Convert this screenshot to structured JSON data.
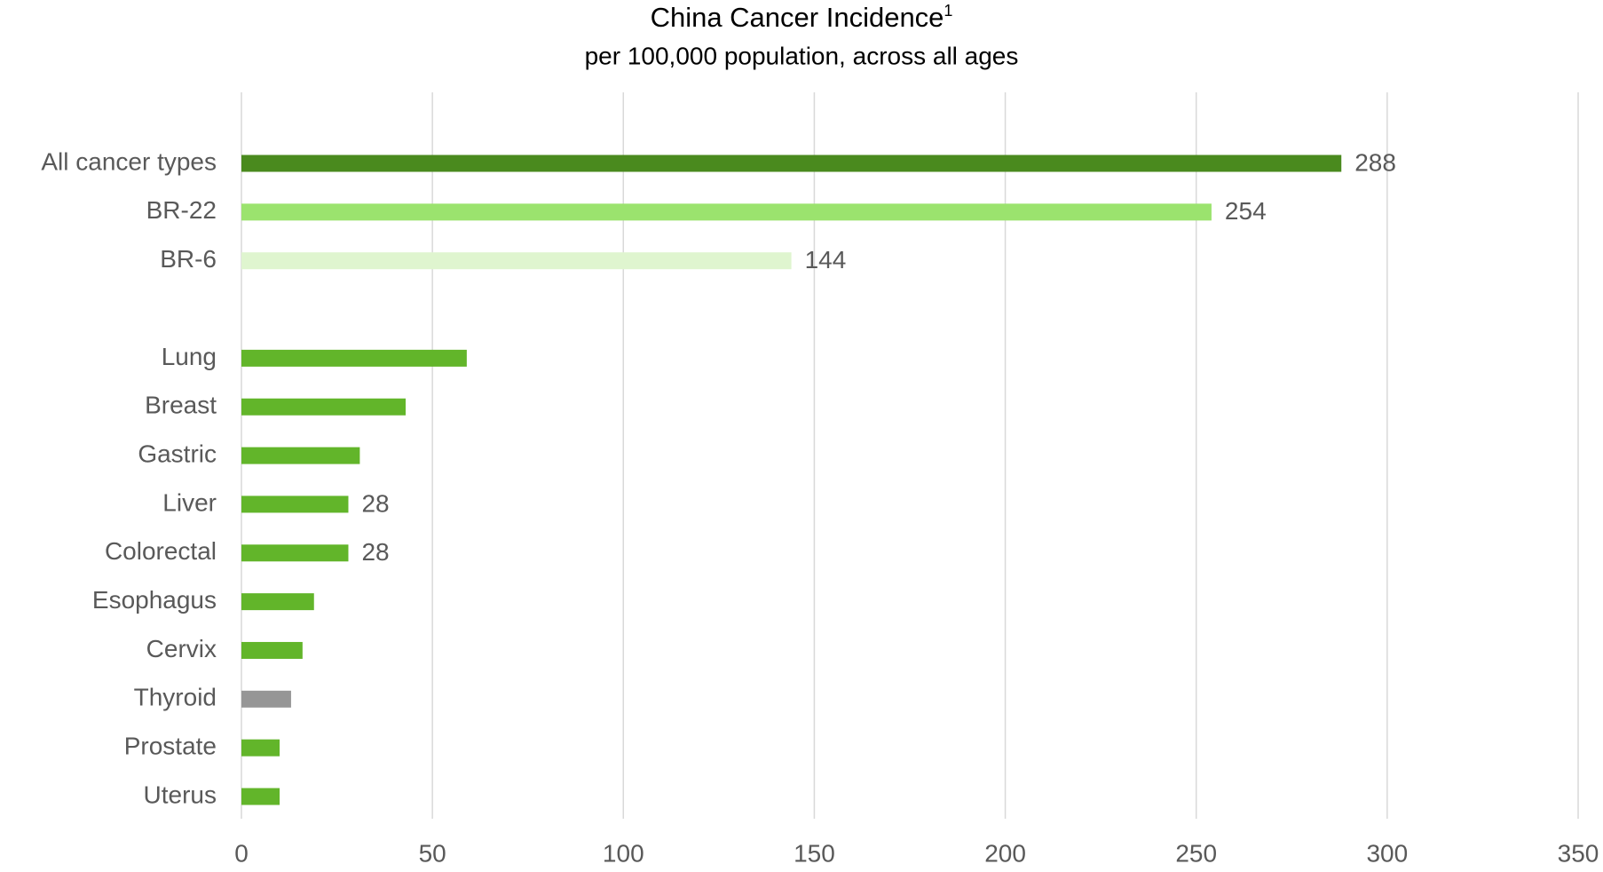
{
  "chart_data": {
    "type": "hbar",
    "title": "China Cancer Incidence",
    "title_superscript": "1",
    "subtitle": "per 100,000 population, across all ages",
    "categories": [
      "All cancer types",
      "BR-22",
      "BR-6",
      null,
      "Lung",
      "Breast",
      "Gastric",
      "Liver",
      "Colorectal",
      "Esophagus",
      "Cervix",
      "Thyroid",
      "Prostate",
      "Uterus"
    ],
    "values": [
      288,
      254,
      144,
      null,
      59,
      43,
      31,
      28,
      28,
      19,
      16,
      13,
      10,
      10
    ],
    "value_labels": [
      "288",
      "254",
      "144",
      null,
      null,
      null,
      null,
      "28",
      "28",
      null,
      null,
      null,
      null,
      null
    ],
    "colors": [
      "#4a8a1e",
      "#9be36e",
      "#dff5cf",
      null,
      "#62b52a",
      "#62b52a",
      "#62b52a",
      "#62b52a",
      "#62b52a",
      "#62b52a",
      "#62b52a",
      "#969696",
      "#62b52a",
      "#62b52a"
    ],
    "xlim": [
      0,
      350
    ],
    "xticks": [
      0,
      50,
      100,
      150,
      200,
      250,
      300,
      350
    ],
    "grid": true
  }
}
